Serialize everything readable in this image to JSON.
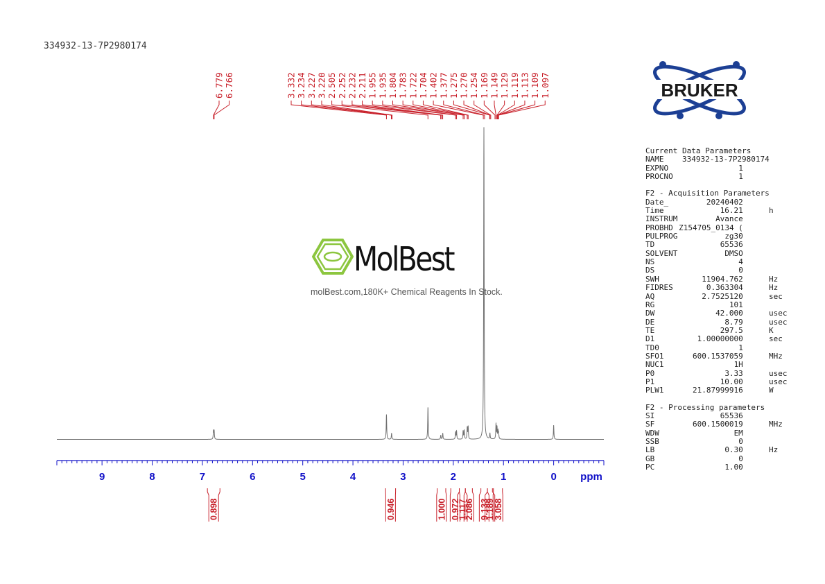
{
  "sample_name": "334932-13-7P2980174",
  "logo": {
    "name": "BRUKER"
  },
  "watermark": {
    "name": "MolBest",
    "tagline": "molBest.com,180K+ Chemical Reagents In Stock."
  },
  "colors": {
    "peak_labels": "#c8202a",
    "axis": "#1010c8",
    "spectrum": "#707070"
  },
  "chart_data": {
    "type": "line",
    "xlabel": "ppm",
    "xlim": [
      9.9,
      -1.0
    ],
    "ticks": [
      9,
      8,
      7,
      6,
      5,
      4,
      3,
      2,
      1,
      0
    ],
    "peak_groups": [
      {
        "labels": [
          "6.779",
          "6.766"
        ],
        "shifts": [
          6.779,
          6.766
        ]
      },
      {
        "labels": [
          "3.332",
          "3.234",
          "3.227",
          "3.220",
          "2.505",
          "2.252",
          "2.232",
          "2.211",
          "1.955",
          "1.935",
          "1.804",
          "1.783",
          "1.722",
          "1.704",
          "1.402",
          "1.377",
          "1.275",
          "1.270",
          "1.254",
          "1.169",
          "1.149",
          "1.129",
          "1.119",
          "1.113",
          "1.109",
          "1.097"
        ],
        "shifts": [
          3.332,
          3.234,
          3.227,
          3.22,
          2.505,
          2.252,
          2.232,
          2.211,
          1.955,
          1.935,
          1.804,
          1.783,
          1.722,
          1.704,
          1.402,
          1.377,
          1.275,
          1.27,
          1.254,
          1.169,
          1.149,
          1.129,
          1.119,
          1.113,
          1.109,
          1.097
        ]
      }
    ],
    "spectrum_peaks": [
      {
        "shift": 6.779,
        "height": 0.2
      },
      {
        "shift": 6.766,
        "height": 0.2
      },
      {
        "shift": 3.332,
        "height": 0.6
      },
      {
        "shift": 3.23,
        "height": 0.15
      },
      {
        "shift": 2.505,
        "height": 0.78
      },
      {
        "shift": 2.25,
        "height": 0.1
      },
      {
        "shift": 2.21,
        "height": 0.15
      },
      {
        "shift": 1.955,
        "height": 0.17
      },
      {
        "shift": 1.935,
        "height": 0.2
      },
      {
        "shift": 1.804,
        "height": 0.2
      },
      {
        "shift": 1.783,
        "height": 0.21
      },
      {
        "shift": 1.722,
        "height": 0.28
      },
      {
        "shift": 1.704,
        "height": 0.3
      },
      {
        "shift": 1.39,
        "height": 7.5
      },
      {
        "shift": 1.27,
        "height": 0.14
      },
      {
        "shift": 1.149,
        "height": 0.36
      },
      {
        "shift": 1.129,
        "height": 0.28
      },
      {
        "shift": 1.109,
        "height": 0.19
      },
      {
        "shift": 1.097,
        "height": 0.13
      },
      {
        "shift": 0.0,
        "height": 0.34
      }
    ],
    "integrals": [
      {
        "value": "0.898",
        "from": 6.9,
        "to": 6.65
      },
      {
        "value": "0.946",
        "from": 3.35,
        "to": 3.15
      },
      {
        "value": "1.000",
        "from": 2.32,
        "to": 2.15
      },
      {
        "value": "0.972",
        "from": 2.05,
        "to": 1.88
      },
      {
        "value": "1.117",
        "from": 1.88,
        "to": 1.76
      },
      {
        "value": "2.086",
        "from": 1.76,
        "to": 1.62
      },
      {
        "value": "9.133",
        "from": 1.45,
        "to": 1.32
      },
      {
        "value": "1.189",
        "from": 1.32,
        "to": 1.22
      },
      {
        "value": "3.058",
        "from": 1.2,
        "to": 1.02
      }
    ]
  },
  "parameters": [
    {
      "title": "Current Data Parameters",
      "rows": [
        {
          "key": "NAME",
          "value": "334932-13-7P2980174",
          "unit": ""
        },
        {
          "key": "EXPNO",
          "value": "1",
          "unit": ""
        },
        {
          "key": "PROCNO",
          "value": "1",
          "unit": ""
        }
      ]
    },
    {
      "title": "F2 - Acquisition Parameters",
      "rows": [
        {
          "key": "Date_",
          "value": "20240402",
          "unit": ""
        },
        {
          "key": "Time",
          "value": "16.21",
          "unit": "h"
        },
        {
          "key": "INSTRUM",
          "value": "Avance",
          "unit": ""
        },
        {
          "key": "PROBHD",
          "value": "Z154705_0134 (",
          "unit": ""
        },
        {
          "key": "PULPROG",
          "value": "zg30",
          "unit": ""
        },
        {
          "key": "TD",
          "value": "65536",
          "unit": ""
        },
        {
          "key": "SOLVENT",
          "value": "DMSO",
          "unit": ""
        },
        {
          "key": "NS",
          "value": "4",
          "unit": ""
        },
        {
          "key": "DS",
          "value": "0",
          "unit": ""
        },
        {
          "key": "SWH",
          "value": "11904.762",
          "unit": "Hz"
        },
        {
          "key": "FIDRES",
          "value": "0.363304",
          "unit": "Hz"
        },
        {
          "key": "AQ",
          "value": "2.7525120",
          "unit": "sec"
        },
        {
          "key": "RG",
          "value": "101",
          "unit": ""
        },
        {
          "key": "DW",
          "value": "42.000",
          "unit": "usec"
        },
        {
          "key": "DE",
          "value": "8.79",
          "unit": "usec"
        },
        {
          "key": "TE",
          "value": "297.5",
          "unit": "K"
        },
        {
          "key": "D1",
          "value": "1.00000000",
          "unit": "sec"
        },
        {
          "key": "TD0",
          "value": "1",
          "unit": ""
        },
        {
          "key": "SFO1",
          "value": "600.1537059",
          "unit": "MHz"
        },
        {
          "key": "NUC1",
          "value": "1H",
          "unit": ""
        },
        {
          "key": "P0",
          "value": "3.33",
          "unit": "usec"
        },
        {
          "key": "P1",
          "value": "10.00",
          "unit": "usec"
        },
        {
          "key": "PLW1",
          "value": "21.87999916",
          "unit": "W"
        }
      ]
    },
    {
      "title": "F2 - Processing parameters",
      "rows": [
        {
          "key": "SI",
          "value": "65536",
          "unit": ""
        },
        {
          "key": "SF",
          "value": "600.1500019",
          "unit": "MHz"
        },
        {
          "key": "WDW",
          "value": "EM",
          "unit": ""
        },
        {
          "key": "SSB",
          "value": "0",
          "unit": ""
        },
        {
          "key": "LB",
          "value": "0.30",
          "unit": "Hz"
        },
        {
          "key": "GB",
          "value": "0",
          "unit": ""
        },
        {
          "key": "PC",
          "value": "1.00",
          "unit": ""
        }
      ]
    }
  ]
}
